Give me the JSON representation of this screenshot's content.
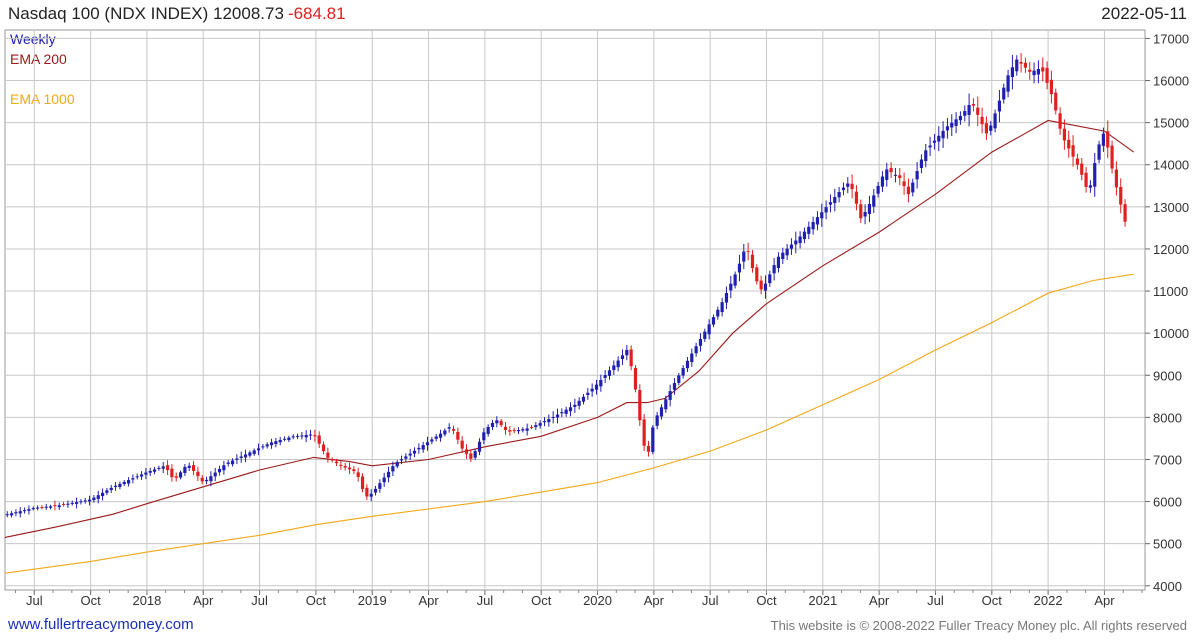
{
  "header": {
    "title": "Nasdaq 100 (NDX INDEX) 12008.73",
    "change": "-684.81",
    "date": "2022-05-11"
  },
  "legend": {
    "weekly": "Weekly",
    "ema200": "EMA 200",
    "ema1000": "EMA 1000"
  },
  "footer": {
    "url": "www.fullertreacymoney.com",
    "copyright": "This website is © 2008-2022 Fuller Treacy Money plc. All rights reserved"
  },
  "colors": {
    "up": "#1f1fb0",
    "down": "#e02020",
    "ema200": "#9a1a1a",
    "ema1000": "#f0a818",
    "grid": "#c8c8c8"
  },
  "chart_data": {
    "type": "candlestick",
    "yticks": [
      4000,
      5000,
      6000,
      7000,
      8000,
      9000,
      10000,
      11000,
      12000,
      13000,
      14000,
      15000,
      16000,
      17000
    ],
    "ylim": [
      3900,
      17200
    ],
    "xlim": [
      2017.37,
      2022.43
    ],
    "xticks": [
      {
        "label": "Jul",
        "x": 2017.5
      },
      {
        "label": "Oct",
        "x": 2017.75
      },
      {
        "label": "2018",
        "x": 2018.0
      },
      {
        "label": "Apr",
        "x": 2018.25
      },
      {
        "label": "Jul",
        "x": 2018.5
      },
      {
        "label": "Oct",
        "x": 2018.75
      },
      {
        "label": "2019",
        "x": 2019.0
      },
      {
        "label": "Apr",
        "x": 2019.25
      },
      {
        "label": "Jul",
        "x": 2019.5
      },
      {
        "label": "Oct",
        "x": 2019.75
      },
      {
        "label": "2020",
        "x": 2020.0
      },
      {
        "label": "Apr",
        "x": 2020.25
      },
      {
        "label": "Jul",
        "x": 2020.5
      },
      {
        "label": "Oct",
        "x": 2020.75
      },
      {
        "label": "2021",
        "x": 2021.0
      },
      {
        "label": "Apr",
        "x": 2021.25
      },
      {
        "label": "Jul",
        "x": 2021.5
      },
      {
        "label": "Oct",
        "x": 2021.75
      },
      {
        "label": "2022",
        "x": 2022.0
      },
      {
        "label": "Apr",
        "x": 2022.25
      }
    ],
    "close_path": [
      [
        2017.38,
        5700
      ],
      [
        2017.5,
        5850
      ],
      [
        2017.6,
        5900
      ],
      [
        2017.75,
        6050
      ],
      [
        2017.85,
        6350
      ],
      [
        2018.0,
        6700
      ],
      [
        2018.08,
        6850
      ],
      [
        2018.12,
        6500
      ],
      [
        2018.18,
        6900
      ],
      [
        2018.25,
        6450
      ],
      [
        2018.35,
        6900
      ],
      [
        2018.45,
        7150
      ],
      [
        2018.55,
        7400
      ],
      [
        2018.65,
        7550
      ],
      [
        2018.74,
        7600
      ],
      [
        2018.8,
        7050
      ],
      [
        2018.86,
        6850
      ],
      [
        2018.93,
        6700
      ],
      [
        2018.97,
        6100
      ],
      [
        2019.0,
        6200
      ],
      [
        2019.1,
        6900
      ],
      [
        2019.2,
        7250
      ],
      [
        2019.3,
        7600
      ],
      [
        2019.35,
        7800
      ],
      [
        2019.4,
        7250
      ],
      [
        2019.44,
        7000
      ],
      [
        2019.5,
        7700
      ],
      [
        2019.55,
        7950
      ],
      [
        2019.6,
        7650
      ],
      [
        2019.7,
        7750
      ],
      [
        2019.8,
        8000
      ],
      [
        2019.9,
        8300
      ],
      [
        2020.0,
        8800
      ],
      [
        2020.1,
        9400
      ],
      [
        2020.13,
        9600
      ],
      [
        2020.16,
        9000
      ],
      [
        2020.18,
        8200
      ],
      [
        2020.2,
        7500
      ],
      [
        2020.22,
        7000
      ],
      [
        2020.25,
        7900
      ],
      [
        2020.35,
        8900
      ],
      [
        2020.45,
        9800
      ],
      [
        2020.55,
        10700
      ],
      [
        2020.62,
        11500
      ],
      [
        2020.66,
        12100
      ],
      [
        2020.7,
        11300
      ],
      [
        2020.73,
        11000
      ],
      [
        2020.8,
        11800
      ],
      [
        2020.9,
        12300
      ],
      [
        2021.0,
        12900
      ],
      [
        2021.08,
        13400
      ],
      [
        2021.12,
        13600
      ],
      [
        2021.17,
        12700
      ],
      [
        2021.22,
        13200
      ],
      [
        2021.28,
        13900
      ],
      [
        2021.34,
        13700
      ],
      [
        2021.38,
        13300
      ],
      [
        2021.45,
        14300
      ],
      [
        2021.55,
        14900
      ],
      [
        2021.62,
        15200
      ],
      [
        2021.66,
        15500
      ],
      [
        2021.73,
        14700
      ],
      [
        2021.77,
        15300
      ],
      [
        2021.82,
        16100
      ],
      [
        2021.86,
        16500
      ],
      [
        2021.92,
        16200
      ],
      [
        2021.97,
        16300
      ],
      [
        2022.02,
        15600
      ],
      [
        2022.06,
        14700
      ],
      [
        2022.1,
        14300
      ],
      [
        2022.14,
        13900
      ],
      [
        2022.18,
        13300
      ],
      [
        2022.22,
        14400
      ],
      [
        2022.25,
        14800
      ],
      [
        2022.28,
        14000
      ],
      [
        2022.31,
        13300
      ],
      [
        2022.34,
        12700
      ],
      [
        2022.36,
        12008.73
      ]
    ],
    "ema200": [
      [
        2017.37,
        5150
      ],
      [
        2017.6,
        5400
      ],
      [
        2017.85,
        5700
      ],
      [
        2018.0,
        5950
      ],
      [
        2018.25,
        6350
      ],
      [
        2018.5,
        6750
      ],
      [
        2018.74,
        7050
      ],
      [
        2018.9,
        6950
      ],
      [
        2019.0,
        6850
      ],
      [
        2019.25,
        7000
      ],
      [
        2019.5,
        7300
      ],
      [
        2019.75,
        7550
      ],
      [
        2020.0,
        8000
      ],
      [
        2020.13,
        8350
      ],
      [
        2020.22,
        8350
      ],
      [
        2020.3,
        8450
      ],
      [
        2020.45,
        9100
      ],
      [
        2020.6,
        10000
      ],
      [
        2020.75,
        10700
      ],
      [
        2021.0,
        11600
      ],
      [
        2021.25,
        12400
      ],
      [
        2021.5,
        13300
      ],
      [
        2021.75,
        14300
      ],
      [
        2021.9,
        14750
      ],
      [
        2022.0,
        15050
      ],
      [
        2022.1,
        14950
      ],
      [
        2022.25,
        14800
      ],
      [
        2022.38,
        14300
      ]
    ],
    "ema1000": [
      [
        2017.37,
        4300
      ],
      [
        2017.75,
        4580
      ],
      [
        2018.0,
        4800
      ],
      [
        2018.5,
        5200
      ],
      [
        2018.75,
        5450
      ],
      [
        2019.0,
        5650
      ],
      [
        2019.5,
        6000
      ],
      [
        2020.0,
        6450
      ],
      [
        2020.25,
        6800
      ],
      [
        2020.5,
        7200
      ],
      [
        2020.75,
        7700
      ],
      [
        2021.0,
        8300
      ],
      [
        2021.25,
        8900
      ],
      [
        2021.5,
        9600
      ],
      [
        2021.75,
        10250
      ],
      [
        2022.0,
        10950
      ],
      [
        2022.2,
        11250
      ],
      [
        2022.38,
        11400
      ]
    ]
  }
}
